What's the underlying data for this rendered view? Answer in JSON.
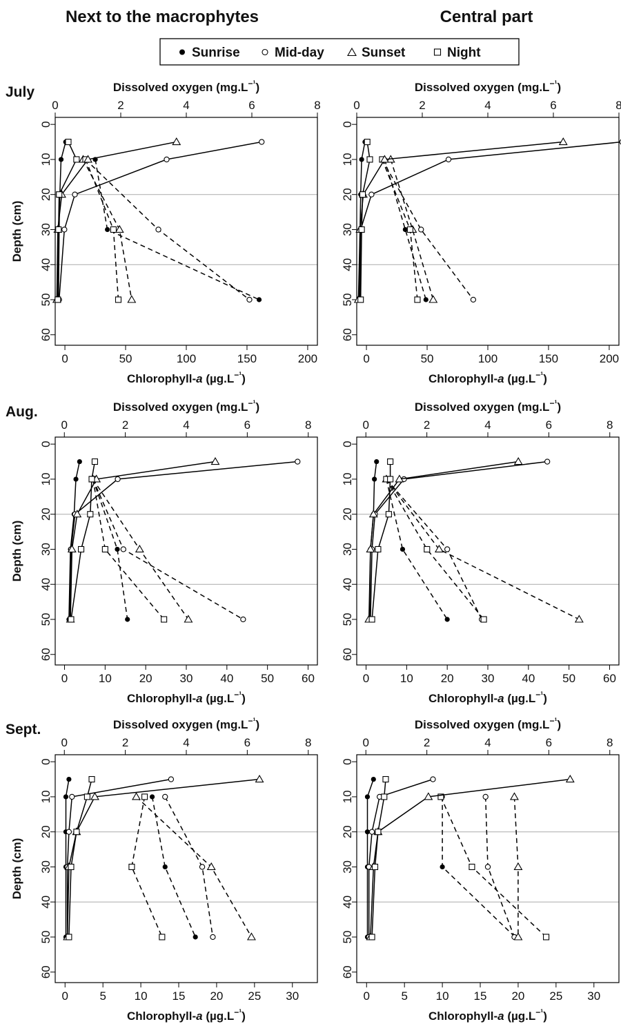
{
  "headers": {
    "left": "Next to the macrophytes",
    "right": "Central part"
  },
  "legend": {
    "placement": "top-center",
    "items": [
      {
        "marker": "filled-circle",
        "label": "Sunrise"
      },
      {
        "marker": "open-circle",
        "label": "Mid-day"
      },
      {
        "marker": "open-triangle",
        "label": "Sunset"
      },
      {
        "marker": "open-square",
        "label": "Night"
      }
    ]
  },
  "line_styles": {
    "solid": "Dissolved oxygen",
    "dashed": "Chlorophyll-a"
  },
  "chart_data": [
    {
      "type": "line",
      "row_label": "July",
      "panel": "Next to the macrophytes",
      "top_axis": {
        "label": "Dissolved oxygen (mg.L⁻¹)",
        "lim": [
          0,
          8
        ],
        "ticks": [
          0,
          2,
          4,
          6,
          8
        ]
      },
      "bottom_axis": {
        "label": "Chlorophyll-a (µg.L⁻¹)",
        "lim": [
          -8,
          208
        ],
        "ticks": [
          0,
          50,
          100,
          150,
          200
        ]
      },
      "y_axis": {
        "label": "Depth (cm)",
        "lim": [
          -2,
          63
        ],
        "ticks": [
          0,
          10,
          20,
          30,
          40,
          50,
          60
        ],
        "inverted": true
      },
      "hgrid": [
        20,
        40
      ],
      "depth": [
        5,
        10,
        20,
        30,
        50
      ],
      "oxygen": [
        {
          "name": "Sunrise",
          "values": [
            0.32,
            0.18,
            0.14,
            0.12,
            0.1
          ]
        },
        {
          "name": "Mid-day",
          "values": [
            6.3,
            3.4,
            0.6,
            0.28,
            0.12
          ]
        },
        {
          "name": "Sunset",
          "values": [
            3.7,
            1.0,
            0.2,
            0.08,
            0.05
          ]
        },
        {
          "name": "Night",
          "values": [
            0.4,
            0.65,
            0.12,
            0.1,
            0.08
          ]
        }
      ],
      "chlorophyll": [
        {
          "name": "Sunrise",
          "values": [
            null,
            25,
            null,
            35,
            160
          ]
        },
        {
          "name": "Mid-day",
          "values": [
            null,
            17,
            null,
            77,
            152
          ]
        },
        {
          "name": "Sunset",
          "values": [
            null,
            15,
            null,
            45,
            55
          ]
        },
        {
          "name": "Night",
          "values": [
            null,
            17,
            null,
            40,
            44
          ]
        }
      ]
    },
    {
      "type": "line",
      "row_label": "",
      "panel": "Central part",
      "top_axis": {
        "label": "Dissolved oxygen (mg.L⁻¹)",
        "lim": [
          0,
          8
        ],
        "ticks": [
          0,
          2,
          4,
          6,
          8
        ]
      },
      "bottom_axis": {
        "label": "Chlorophyll-a (µg.L⁻¹)",
        "lim": [
          -8,
          208
        ],
        "ticks": [
          0,
          50,
          100,
          150,
          200
        ]
      },
      "y_axis": {
        "label": "",
        "lim": [
          -2,
          63
        ],
        "ticks": [
          0,
          10,
          20,
          30,
          40,
          50,
          60
        ],
        "inverted": true
      },
      "hgrid": [
        20,
        40
      ],
      "depth": [
        5,
        10,
        20,
        30,
        50
      ],
      "oxygen": [
        {
          "name": "Sunrise",
          "values": [
            0.25,
            0.15,
            0.12,
            0.1,
            0.08
          ]
        },
        {
          "name": "Mid-day",
          "values": [
            8.1,
            2.8,
            0.45,
            0.12,
            0.1
          ]
        },
        {
          "name": "Sunset",
          "values": [
            6.3,
            0.85,
            0.2,
            0.1,
            0.05
          ]
        },
        {
          "name": "Night",
          "values": [
            0.32,
            0.4,
            0.18,
            0.15,
            0.12
          ]
        }
      ],
      "chlorophyll": [
        {
          "name": "Sunrise",
          "values": [
            null,
            15,
            null,
            32,
            49
          ]
        },
        {
          "name": "Mid-day",
          "values": [
            null,
            13,
            null,
            45,
            88
          ]
        },
        {
          "name": "Sunset",
          "values": [
            null,
            20,
            null,
            38,
            55
          ]
        },
        {
          "name": "Night",
          "values": [
            null,
            13,
            null,
            36,
            42
          ]
        }
      ]
    },
    {
      "type": "line",
      "row_label": "Aug.",
      "panel": "Next to the macrophytes",
      "top_axis": {
        "label": "Dissolved oxygen (mg.L⁻¹)",
        "lim": [
          -0.3,
          8.3
        ],
        "ticks": [
          0,
          2,
          4,
          6,
          8
        ]
      },
      "bottom_axis": {
        "label": "Chlorophyll-a (µg.L⁻¹)",
        "lim": [
          -2.3,
          62.3
        ],
        "ticks": [
          0,
          10,
          20,
          30,
          40,
          50,
          60
        ]
      },
      "y_axis": {
        "label": "Depth (cm)",
        "lim": [
          -2,
          63
        ],
        "ticks": [
          0,
          10,
          20,
          30,
          40,
          50,
          60
        ],
        "inverted": true
      },
      "hgrid": [
        20,
        40
      ],
      "depth": [
        5,
        10,
        20,
        30,
        50
      ],
      "oxygen": [
        {
          "name": "Sunrise",
          "values": [
            0.5,
            0.38,
            0.32,
            0.2,
            0.15
          ]
        },
        {
          "name": "Mid-day",
          "values": [
            7.65,
            1.75,
            0.35,
            0.22,
            0.18
          ]
        },
        {
          "name": "Sunset",
          "values": [
            4.95,
            1.05,
            0.42,
            0.25,
            0.2
          ]
        },
        {
          "name": "Night",
          "values": [
            1.0,
            0.9,
            0.85,
            0.55,
            0.22
          ]
        }
      ],
      "chlorophyll": [
        {
          "name": "Sunrise",
          "values": [
            null,
            7,
            null,
            13,
            15.5
          ]
        },
        {
          "name": "Mid-day",
          "values": [
            null,
            7,
            null,
            14.5,
            44
          ]
        },
        {
          "name": "Sunset",
          "values": [
            null,
            7,
            null,
            18.5,
            30.5
          ]
        },
        {
          "name": "Night",
          "values": [
            null,
            7,
            null,
            10,
            24.5
          ]
        }
      ]
    },
    {
      "type": "line",
      "row_label": "",
      "panel": "Central part",
      "top_axis": {
        "label": "Dissolved oxygen (mg.L⁻¹)",
        "lim": [
          -0.3,
          8.3
        ],
        "ticks": [
          0,
          2,
          4,
          6,
          8
        ]
      },
      "bottom_axis": {
        "label": "Chlorophyll-a (µg.L⁻¹)",
        "lim": [
          -2.3,
          62.3
        ],
        "ticks": [
          0,
          10,
          20,
          30,
          40,
          50,
          60
        ]
      },
      "y_axis": {
        "label": "",
        "lim": [
          -2,
          63
        ],
        "ticks": [
          0,
          10,
          20,
          30,
          40,
          50,
          60
        ],
        "inverted": true
      },
      "hgrid": [
        20,
        40
      ],
      "depth": [
        5,
        10,
        20,
        30,
        50
      ],
      "oxygen": [
        {
          "name": "Sunrise",
          "values": [
            0.35,
            0.28,
            0.25,
            0.15,
            0.12
          ]
        },
        {
          "name": "Mid-day",
          "values": [
            5.95,
            1.25,
            0.3,
            0.2,
            0.15
          ]
        },
        {
          "name": "Sunset",
          "values": [
            5.0,
            1.1,
            0.25,
            0.15,
            0.1
          ]
        },
        {
          "name": "Night",
          "values": [
            0.8,
            0.8,
            0.75,
            0.4,
            0.2
          ]
        }
      ],
      "chlorophyll": [
        {
          "name": "Sunrise",
          "values": [
            null,
            5,
            null,
            9,
            20
          ]
        },
        {
          "name": "Mid-day",
          "values": [
            null,
            5,
            null,
            20,
            28.5
          ]
        },
        {
          "name": "Sunset",
          "values": [
            null,
            5,
            null,
            18,
            52.5
          ]
        },
        {
          "name": "Night",
          "values": [
            null,
            5,
            null,
            15,
            29
          ]
        }
      ]
    },
    {
      "type": "line",
      "row_label": "Sept.",
      "panel": "Next to the macrophytes",
      "top_axis": {
        "label": "Dissolved oxygen (mg.L⁻¹)",
        "lim": [
          -0.3,
          8.3
        ],
        "ticks": [
          0,
          2,
          4,
          6,
          8
        ]
      },
      "bottom_axis": {
        "label": "Chlorophyll-a (µg.L⁻¹)",
        "lim": [
          -1.3,
          33.3
        ],
        "ticks": [
          0,
          5,
          10,
          15,
          20,
          25,
          30
        ]
      },
      "y_axis": {
        "label": "Depth (cm)",
        "lim": [
          -2,
          63
        ],
        "ticks": [
          0,
          10,
          20,
          30,
          40,
          50,
          60
        ],
        "inverted": true
      },
      "hgrid": [
        20,
        40
      ],
      "depth": [
        5,
        10,
        20,
        30,
        50
      ],
      "oxygen": [
        {
          "name": "Sunrise",
          "values": [
            0.15,
            0.05,
            0.05,
            0.05,
            0.05
          ]
        },
        {
          "name": "Mid-day",
          "values": [
            3.5,
            0.25,
            0.15,
            0.1,
            0.1
          ]
        },
        {
          "name": "Sunset",
          "values": [
            6.4,
            1.0,
            0.4,
            0.15,
            0.1
          ]
        },
        {
          "name": "Night",
          "values": [
            0.9,
            0.75,
            0.4,
            0.22,
            0.15
          ]
        }
      ],
      "chlorophyll": [
        {
          "name": "Sunrise",
          "values": [
            null,
            11.5,
            null,
            13.2,
            17.2
          ]
        },
        {
          "name": "Mid-day",
          "values": [
            null,
            13.2,
            null,
            18.1,
            19.5
          ]
        },
        {
          "name": "Sunset",
          "values": [
            null,
            9.4,
            null,
            19.3,
            24.6
          ]
        },
        {
          "name": "Night",
          "values": [
            null,
            10.5,
            null,
            8.8,
            12.8
          ]
        }
      ]
    },
    {
      "type": "line",
      "row_label": "",
      "panel": "Central part",
      "top_axis": {
        "label": "Dissolved oxygen (mg.L⁻¹)",
        "lim": [
          -0.3,
          8.3
        ],
        "ticks": [
          0,
          2,
          4,
          6,
          8
        ]
      },
      "bottom_axis": {
        "label": "Chlorophyll-a (µg.L⁻¹)",
        "lim": [
          -1.3,
          33.3
        ],
        "ticks": [
          0,
          5,
          10,
          15,
          20,
          25,
          30
        ]
      },
      "y_axis": {
        "label": "",
        "lim": [
          -2,
          63
        ],
        "ticks": [
          0,
          10,
          20,
          30,
          40,
          50,
          60
        ],
        "inverted": true
      },
      "hgrid": [
        20,
        40
      ],
      "depth": [
        5,
        10,
        20,
        30,
        50
      ],
      "oxygen": [
        {
          "name": "Sunrise",
          "values": [
            0.25,
            0.05,
            0.05,
            0.05,
            0.05
          ]
        },
        {
          "name": "Mid-day",
          "values": [
            2.2,
            0.45,
            0.2,
            0.1,
            0.1
          ]
        },
        {
          "name": "Sunset",
          "values": [
            6.7,
            2.05,
            0.4,
            0.25,
            0.15
          ]
        },
        {
          "name": "Night",
          "values": [
            0.65,
            0.6,
            0.4,
            0.3,
            0.2
          ]
        }
      ],
      "chlorophyll": [
        {
          "name": "Sunrise",
          "values": [
            null,
            10,
            null,
            10,
            19.6
          ]
        },
        {
          "name": "Mid-day",
          "values": [
            null,
            15.7,
            null,
            16,
            19.5
          ]
        },
        {
          "name": "Sunset",
          "values": [
            null,
            19.5,
            null,
            20,
            20
          ]
        },
        {
          "name": "Night",
          "values": [
            null,
            9.8,
            null,
            13.9,
            23.7
          ]
        }
      ]
    }
  ]
}
